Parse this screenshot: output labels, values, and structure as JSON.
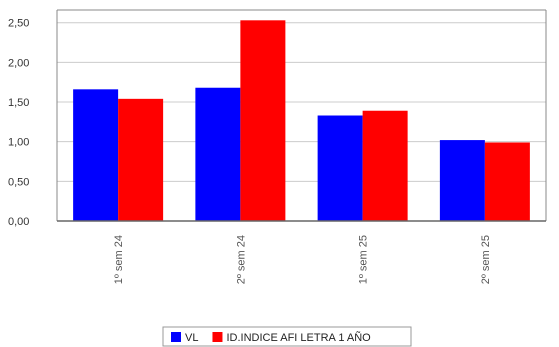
{
  "chart_data": {
    "type": "bar",
    "categories": [
      "1º sem  24",
      "2º sem  24",
      "1º sem  25",
      "2º sem  25"
    ],
    "series": [
      {
        "name": "VL",
        "color": "#0000ff",
        "values": [
          1.66,
          1.68,
          1.33,
          1.02
        ]
      },
      {
        "name": "ID.INDICE AFI LETRA 1 AÑO",
        "color": "#ff0000",
        "values": [
          1.54,
          2.53,
          1.39,
          0.99
        ]
      }
    ],
    "yticks": [
      "0,00",
      "0,50",
      "1,00",
      "1,50",
      "2,00",
      "2,50"
    ],
    "ylim": [
      0,
      2.66
    ],
    "grid": true,
    "legend_position": "bottom-center",
    "title": "",
    "xlabel": "",
    "ylabel": ""
  }
}
